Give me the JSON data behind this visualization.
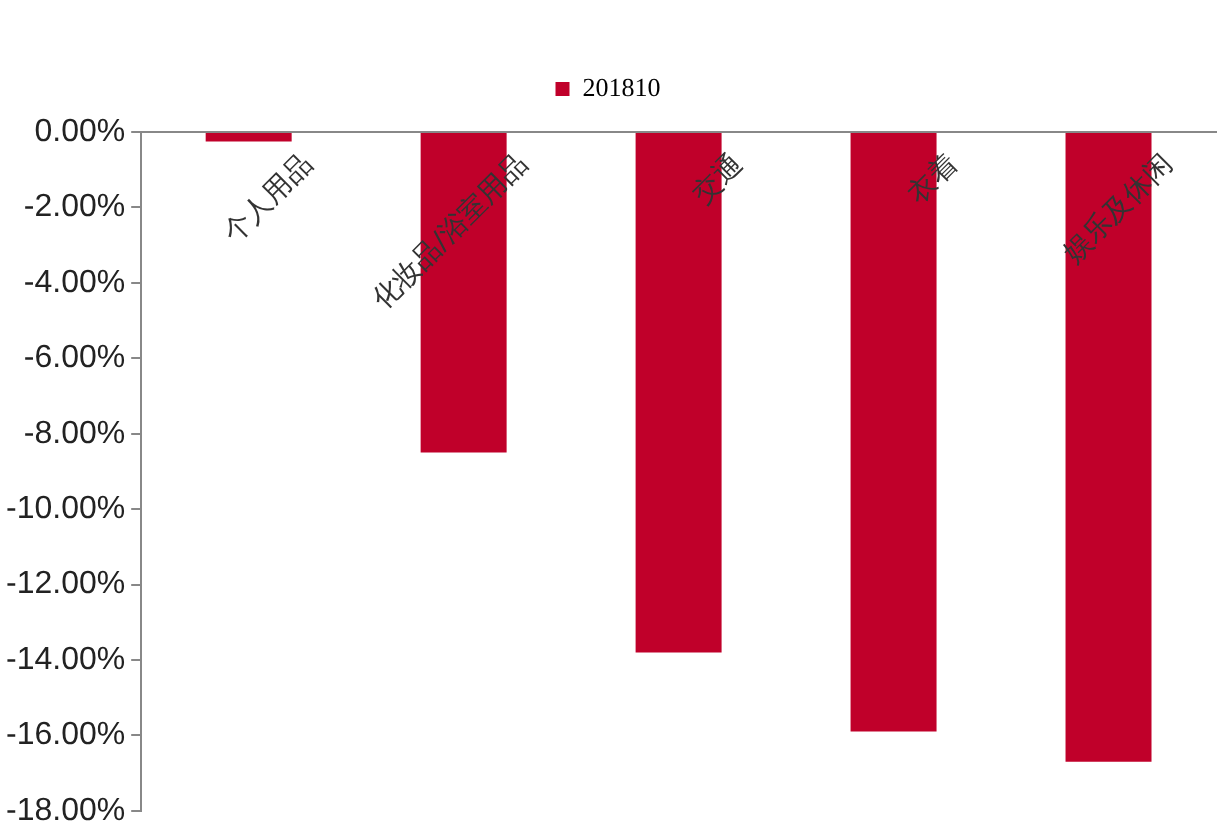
{
  "chart_data": {
    "type": "bar",
    "categories": [
      "个人用品",
      "化妆品/浴室用品",
      "交通",
      "衣着",
      "娱乐及休闲"
    ],
    "series": [
      {
        "name": "201810",
        "color": "#c0002a",
        "values": [
          -0.25,
          -8.5,
          -13.8,
          -15.9,
          -16.7
        ]
      }
    ],
    "ylim": [
      -18,
      0
    ],
    "yticks": [
      {
        "value": 0,
        "label": "0.00%"
      },
      {
        "value": -2,
        "label": "-2.00%"
      },
      {
        "value": -4,
        "label": "-4.00%"
      },
      {
        "value": -6,
        "label": "-6.00%"
      },
      {
        "value": -8,
        "label": "-8.00%"
      },
      {
        "value": -10,
        "label": "-10.00%"
      },
      {
        "value": -12,
        "label": "-12.00%"
      },
      {
        "value": -14,
        "label": "-14.00%"
      },
      {
        "value": -16,
        "label": "-16.00%"
      },
      {
        "value": -18,
        "label": "-18.00%"
      }
    ],
    "grid": false,
    "legend": "top"
  }
}
